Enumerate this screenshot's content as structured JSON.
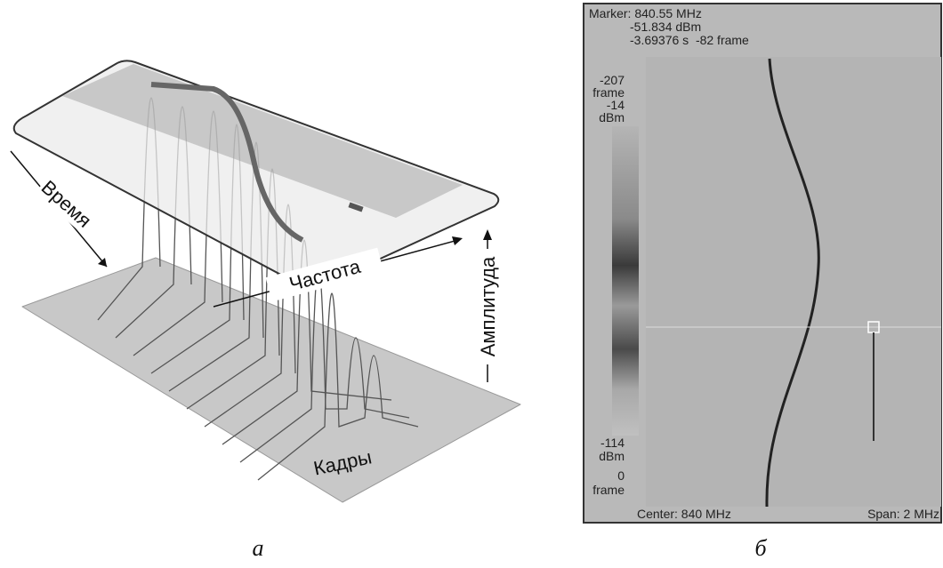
{
  "panel_a": {
    "caption": "а",
    "labels": {
      "time": "Время",
      "frequency": "Частота",
      "amplitude": "Амплитуда",
      "frames": "Кадры"
    }
  },
  "panel_b": {
    "caption": "б",
    "marker": {
      "frequency": "Marker: 840.55 MHz",
      "level": "-51.834 dBm",
      "time": "-3.69376 s  -82 frame"
    },
    "scale": {
      "top_frame": "-207",
      "top_frame_unit": "frame",
      "top_level": "-14",
      "top_level_unit": "dBm",
      "bottom_level": "-114",
      "bottom_level_unit": "dBm",
      "bottom_frame": "0",
      "bottom_frame_unit": "frame"
    },
    "footer": {
      "center": "Center: 840 MHz",
      "span": "Span: 2 MHz"
    }
  }
}
